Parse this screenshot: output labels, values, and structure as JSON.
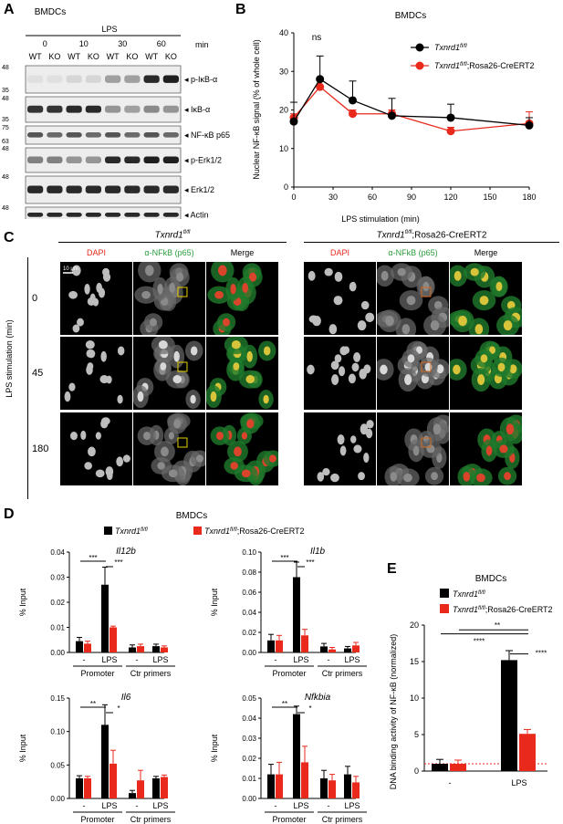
{
  "panel_letters": {
    "a": "A",
    "b": "B",
    "c": "C",
    "d": "D",
    "e": "E"
  },
  "panelA": {
    "title": "BMDCs",
    "treatment": "LPS",
    "time_label": "min",
    "time_points": [
      "0",
      "10",
      "30",
      "60"
    ],
    "genotypes": [
      "WT",
      "KO",
      "WT",
      "KO",
      "WT",
      "KO",
      "WT",
      "KO"
    ],
    "blots": [
      {
        "name": "p-IκB-α",
        "mw": [
          "48",
          "35"
        ]
      },
      {
        "name": "IκB-α",
        "mw": [
          "48",
          "35"
        ]
      },
      {
        "name": "NF-κB p65",
        "mw": [
          "75",
          "63"
        ]
      },
      {
        "name": "p-Erk1/2",
        "mw": [
          "48"
        ]
      },
      {
        "name": "Erk1/2",
        "mw": [
          "48"
        ]
      },
      {
        "name": "Actin",
        "mw": [
          "48"
        ]
      }
    ]
  },
  "panelB": {
    "chart_data": {
      "type": "line",
      "title": "BMDCs",
      "xlabel": "LPS stimulation (min)",
      "ylabel": "Nuclear NF-κB signal (% of whole cell)",
      "xlim": [
        0,
        180
      ],
      "ylim": [
        0,
        40
      ],
      "xticks": [
        0,
        30,
        60,
        90,
        120,
        150,
        180
      ],
      "yticks": [
        0,
        10,
        20,
        30,
        40
      ],
      "x": [
        0,
        20,
        45,
        75,
        120,
        180
      ],
      "annotation": "ns",
      "legend_position": "top-right",
      "series": [
        {
          "name": "Txnrd1",
          "sup": "fl/fl",
          "suffix": "",
          "color": "#000000",
          "values": [
            17,
            28,
            22.5,
            18.5,
            18,
            16
          ],
          "err": [
            5,
            6,
            5,
            4.5,
            3.5,
            2
          ]
        },
        {
          "name": "Txnrd1",
          "sup": "fl/fl",
          "suffix": ";Rosa26-CreERT2",
          "color": "#e8291c",
          "values": [
            18,
            26,
            19,
            19,
            14.5,
            16.5
          ],
          "err": [
            1,
            2,
            1,
            1,
            1,
            3
          ]
        }
      ]
    }
  },
  "panelC": {
    "group_left": {
      "name": "Txnrd1",
      "sup": "fl/fl",
      "suffix": ""
    },
    "group_right": {
      "name": "Txnrd1",
      "sup": "fl/fl",
      "suffix": ";Rosa26-CreERT2"
    },
    "channels": [
      "DAPI",
      "α-NFkB (p65)",
      "Merge"
    ],
    "scale_bar": "10 μm",
    "y_axis_label": "LPS stimulation (min)",
    "rows": [
      "0",
      "45",
      "180"
    ],
    "colors": {
      "dapi": "#e8291c",
      "nfkb": "#2a9c3b",
      "box_left": "#e5d000",
      "box_right": "#d2691e"
    }
  },
  "panelD": {
    "title": "BMDCs",
    "legend": [
      {
        "name": "Txnrd1",
        "sup": "fl/fl",
        "suffix": "",
        "color": "#000000"
      },
      {
        "name": "Txnrd1",
        "sup": "fl/fl",
        "suffix": ";Rosa26-CreERT2",
        "color": "#e8291c"
      }
    ],
    "ylabel": "% Input",
    "chart_data": [
      {
        "type": "bar",
        "title": "Il12b",
        "ylim": [
          0,
          0.04
        ],
        "yticks": [
          "0.00",
          "0.01",
          "0.02",
          "0.03",
          "0.04"
        ],
        "categories": [
          "-",
          "LPS",
          "-",
          "LPS"
        ],
        "groups": [
          "Promoter",
          "Ctr primers"
        ],
        "series": [
          {
            "values": [
              0.0045,
              0.027,
              0.002,
              0.0025
            ],
            "err": [
              0.0015,
              0.007,
              0.001,
              0.0008
            ]
          },
          {
            "values": [
              0.0035,
              0.01,
              0.0025,
              0.002
            ],
            "err": [
              0.001,
              0.0005,
              0.0008,
              0.0006
            ]
          }
        ],
        "sig": [
          "***",
          "***"
        ]
      },
      {
        "type": "bar",
        "title": "Il1b",
        "ylim": [
          0,
          0.1
        ],
        "yticks": [
          "0.00",
          "0.02",
          "0.04",
          "0.06",
          "0.08",
          "0.10"
        ],
        "categories": [
          "-",
          "LPS",
          "-",
          "LPS"
        ],
        "groups": [
          "Promoter",
          "Ctr primers"
        ],
        "series": [
          {
            "values": [
              0.012,
              0.075,
              0.006,
              0.004
            ],
            "err": [
              0.006,
              0.015,
              0.003,
              0.002
            ]
          },
          {
            "values": [
              0.012,
              0.017,
              0.003,
              0.007
            ],
            "err": [
              0.005,
              0.006,
              0.002,
              0.003
            ]
          }
        ],
        "sig": [
          "***",
          "***"
        ]
      },
      {
        "type": "bar",
        "title": "Il6",
        "ylim": [
          0,
          0.15
        ],
        "yticks": [
          "0.00",
          "0.05",
          "0.10",
          "0.15"
        ],
        "categories": [
          "-",
          "LPS",
          "-",
          "LPS"
        ],
        "groups": [
          "Promoter",
          "Ctr primers"
        ],
        "series": [
          {
            "values": [
              0.03,
              0.11,
              0.008,
              0.03
            ],
            "err": [
              0.004,
              0.03,
              0.004,
              0.003
            ]
          },
          {
            "values": [
              0.03,
              0.052,
              0.027,
              0.032
            ],
            "err": [
              0.003,
              0.02,
              0.015,
              0.003
            ]
          }
        ],
        "sig": [
          "**",
          "*"
        ]
      },
      {
        "type": "bar",
        "title": "Nfkbia",
        "ylim": [
          0,
          0.05
        ],
        "yticks": [
          "0.00",
          "0.01",
          "0.02",
          "0.03",
          "0.04",
          "0.05"
        ],
        "categories": [
          "-",
          "LPS",
          "-",
          "LPS"
        ],
        "groups": [
          "Promoter",
          "Ctr primers"
        ],
        "series": [
          {
            "values": [
              0.012,
              0.042,
              0.01,
              0.012
            ],
            "err": [
              0.005,
              0.004,
              0.004,
              0.004
            ]
          },
          {
            "values": [
              0.012,
              0.018,
              0.009,
              0.008
            ],
            "err": [
              0.006,
              0.008,
              0.003,
              0.003
            ]
          }
        ],
        "sig": [
          "**",
          "*"
        ]
      }
    ]
  },
  "panelE": {
    "chart_data": {
      "type": "bar",
      "title": "BMDCs",
      "ylabel": "DNA binding activity of NF-κB (normalized)",
      "ylim": [
        0,
        20
      ],
      "yticks": [
        "0",
        "5",
        "10",
        "15",
        "20"
      ],
      "categories": [
        "-",
        "LPS"
      ],
      "series": [
        {
          "name": "Txnrd1",
          "sup": "fl/fl",
          "suffix": "",
          "color": "#000000",
          "values": [
            1,
            15.2
          ],
          "err": [
            0.6,
            1.3
          ]
        },
        {
          "name": "Txnrd1",
          "sup": "fl/fl",
          "suffix": ";Rosa26-CreERT2",
          "color": "#e8291c",
          "values": [
            1,
            5.1
          ],
          "err": [
            0.5,
            0.6
          ]
        }
      ],
      "sig": [
        "****",
        "**",
        "****"
      ],
      "baseline": 1
    }
  }
}
